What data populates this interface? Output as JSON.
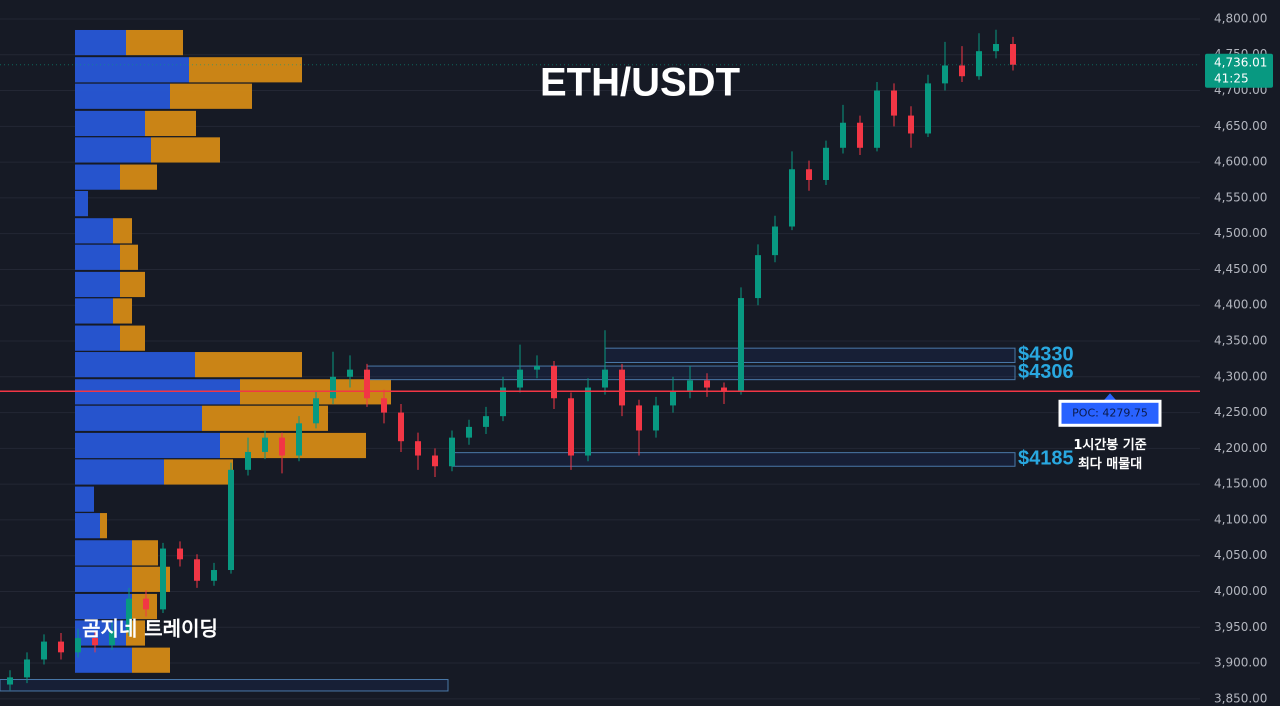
{
  "chart_data": {
    "type": "candlestick",
    "title": "ETH/USDT",
    "watermark": "곰지네 트레이딩",
    "up_color": "#089981",
    "down_color": "#f23645",
    "open": [
      3870,
      3880,
      3905,
      3930,
      3915,
      3935,
      3925,
      3945,
      3990,
      3975,
      4060,
      4045,
      4015,
      4030,
      4170,
      4195,
      4215,
      4190,
      4235,
      4270,
      4300,
      4310,
      4270,
      4250,
      4210,
      4190,
      4175,
      4215,
      4230,
      4245,
      4285,
      4310,
      4315,
      4270,
      4190,
      4285,
      4310,
      4260,
      4225,
      4260,
      4280,
      4295,
      4285,
      4280,
      4410,
      4470,
      4510,
      4590,
      4575,
      4620,
      4655,
      4620,
      4700,
      4665,
      4640,
      4710,
      4735,
      4720,
      4755,
      4765
    ],
    "high": [
      3890,
      3915,
      3940,
      3942,
      3948,
      3945,
      3958,
      4005,
      4002,
      4068,
      4070,
      4052,
      4040,
      4180,
      4215,
      4225,
      4222,
      4245,
      4280,
      4335,
      4330,
      4318,
      4282,
      4262,
      4222,
      4200,
      4225,
      4240,
      4258,
      4300,
      4345,
      4330,
      4322,
      4278,
      4298,
      4365,
      4318,
      4268,
      4272,
      4300,
      4315,
      4305,
      4292,
      4425,
      4485,
      4525,
      4615,
      4602,
      4630,
      4680,
      4665,
      4712,
      4710,
      4678,
      4722,
      4768,
      4762,
      4780,
      4785,
      4775
    ],
    "low": [
      3862,
      3872,
      3898,
      3905,
      3908,
      3915,
      3918,
      3938,
      3965,
      3970,
      4035,
      4005,
      4008,
      4025,
      4162,
      4185,
      4165,
      4182,
      4228,
      4262,
      4285,
      4258,
      4235,
      4195,
      4170,
      4160,
      4168,
      4205,
      4220,
      4238,
      4278,
      4298,
      4255,
      4170,
      4182,
      4275,
      4245,
      4190,
      4215,
      4250,
      4270,
      4272,
      4262,
      4275,
      4400,
      4460,
      4505,
      4560,
      4568,
      4612,
      4610,
      4615,
      4650,
      4620,
      4635,
      4700,
      4712,
      4715,
      4745,
      4728
    ],
    "close": [
      3880,
      3905,
      3930,
      3915,
      3935,
      3925,
      3945,
      3990,
      3975,
      4060,
      4045,
      4015,
      4030,
      4170,
      4195,
      4215,
      4190,
      4235,
      4270,
      4300,
      4310,
      4270,
      4250,
      4210,
      4190,
      4175,
      4215,
      4230,
      4245,
      4285,
      4310,
      4315,
      4270,
      4190,
      4285,
      4310,
      4260,
      4225,
      4260,
      4280,
      4295,
      4285,
      4280,
      4410,
      4470,
      4510,
      4590,
      4575,
      4620,
      4655,
      4620,
      4700,
      4665,
      4640,
      4710,
      4735,
      4720,
      4755,
      4765,
      4736.01
    ],
    "last_price_label": "4,736.01",
    "countdown": "41:25",
    "ylim": [
      3840,
      4826.5
    ],
    "yticks": [
      {
        "value": 3850,
        "label": "3,850.00"
      },
      {
        "value": 3900,
        "label": "3,900.00"
      },
      {
        "value": 3950,
        "label": "3,950.00"
      },
      {
        "value": 4000,
        "label": "4,000.00"
      },
      {
        "value": 4050,
        "label": "4,050.00"
      },
      {
        "value": 4100,
        "label": "4,100.00"
      },
      {
        "value": 4150,
        "label": "4,150.00"
      },
      {
        "value": 4200,
        "label": "4,200.00"
      },
      {
        "value": 4250,
        "label": "4,250.00"
      },
      {
        "value": 4300,
        "label": "4,300.00"
      },
      {
        "value": 4350,
        "label": "4,350.00"
      },
      {
        "value": 4400,
        "label": "4,400.00"
      },
      {
        "value": 4450,
        "label": "4,450.00"
      },
      {
        "value": 4500,
        "label": "4,500.00"
      },
      {
        "value": 4550,
        "label": "4,550.00"
      },
      {
        "value": 4600,
        "label": "4,600.00"
      },
      {
        "value": 4650,
        "label": "4,650.00"
      },
      {
        "value": 4700,
        "label": "4,700.00"
      },
      {
        "value": 4750,
        "label": "4,750.00"
      },
      {
        "value": 4800,
        "label": "4,800.00"
      }
    ],
    "grid": true,
    "volume_profile": {
      "levels": [
        4767,
        4729,
        4692,
        4654,
        4617,
        4579,
        4542,
        4504,
        4467,
        4429,
        4392,
        4354,
        4317,
        4279,
        4242,
        4204,
        4167,
        4129,
        4092,
        4054,
        4017,
        3979,
        3942,
        3904
      ],
      "buy": [
        51,
        114,
        95,
        70,
        76,
        45,
        13,
        38,
        45,
        45,
        38,
        45,
        120,
        165,
        127,
        145,
        89,
        19,
        25,
        57,
        57,
        57,
        51,
        57
      ],
      "sell": [
        57,
        113,
        82,
        51,
        69,
        37,
        0,
        19,
        18,
        25,
        19,
        25,
        107,
        151,
        126,
        146,
        69,
        0,
        7,
        26,
        38,
        25,
        19,
        38
      ],
      "buy_color": "#2757d6",
      "sell_color": "#d48a15"
    },
    "zones": [
      {
        "label": "$4330",
        "low": 4320,
        "high": 4340,
        "start": 35
      },
      {
        "label": "$4306",
        "low": 4296,
        "high": 4315,
        "start": 21
      },
      {
        "label": "$4185",
        "low": 4175,
        "high": 4194,
        "start": 26
      },
      {
        "low": 3861,
        "high": 3877,
        "start": 0
      }
    ],
    "poc": {
      "value": 4279.75,
      "label": "POC: 4279.75",
      "color": "#f23645"
    },
    "annotation": [
      "1시간봉 기준",
      "최다 매물대"
    ]
  }
}
